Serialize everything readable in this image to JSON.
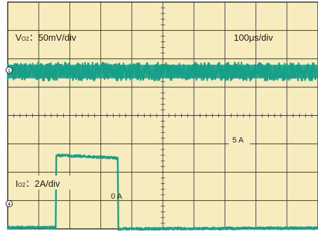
{
  "colors": {
    "screen": "#f6ecbe",
    "grid": "#3a3a3a",
    "border": "#333333",
    "trace": "#16a089",
    "marker": "#222222"
  },
  "labels": {
    "ch1_prefix": "V",
    "ch1_sub": "O2",
    "ch1_scale": "：50mV/div",
    "timebase": "100μs/div",
    "ch4_prefix": "I",
    "ch4_sub": "O2",
    "ch4_scale": "：2A/div",
    "level_high": "5 A",
    "level_low": "0 A",
    "ch1_marker": "1",
    "ch4_marker": "4"
  },
  "chart_data": {
    "type": "line",
    "grid": true,
    "x_divisions": 10,
    "y_divisions": 8,
    "timebase": "100μs/div",
    "series": [
      {
        "name": "VO2",
        "scale": "50mV/div",
        "x_div": [
          0,
          1.55,
          1.56,
          10
        ],
        "y_div": [
          5.55,
          5.55,
          5.55,
          5.55
        ],
        "noise_div": 0.32
      },
      {
        "name": "IO2",
        "scale": "2A/div",
        "x_div": [
          0,
          1.55,
          1.56,
          1.62,
          3.5,
          3.51,
          3.55,
          3.56,
          10
        ],
        "y_div": [
          0.05,
          0.05,
          2.55,
          2.6,
          2.5,
          2.5,
          2.5,
          0.0,
          0.03
        ],
        "noise_div": 0.04
      }
    ]
  }
}
